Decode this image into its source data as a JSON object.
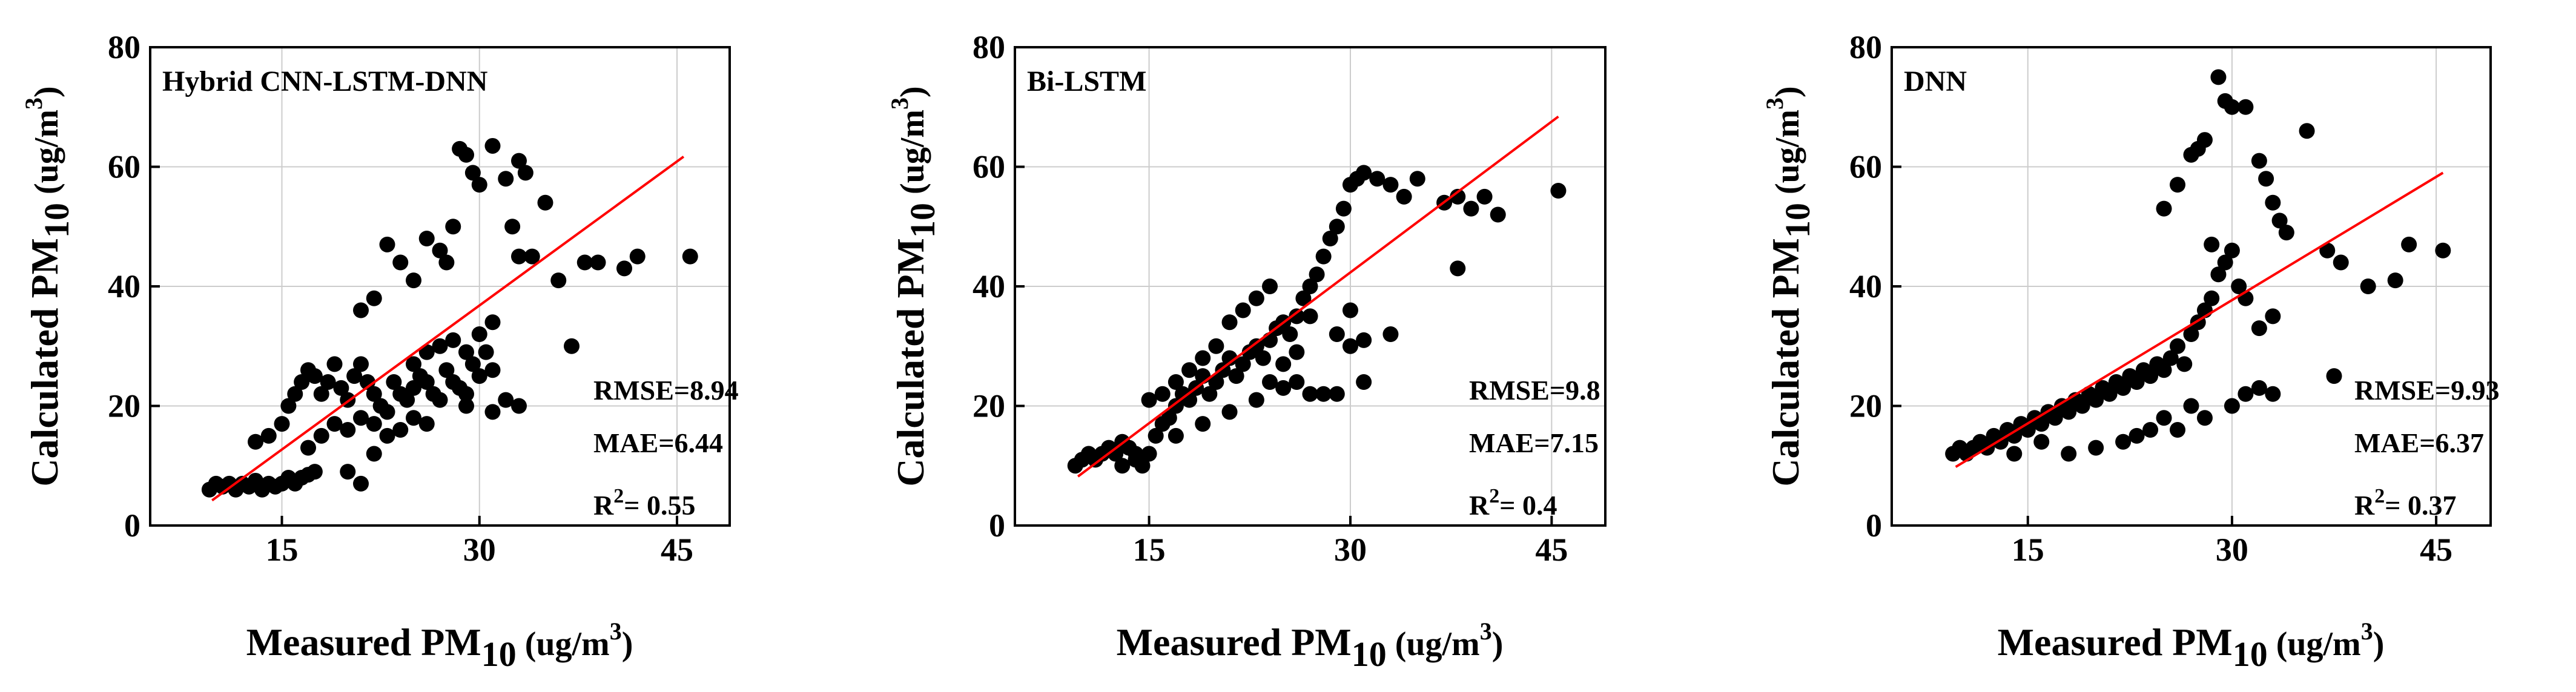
{
  "colors": {
    "point": "#000000",
    "fit_line": "#ff0000",
    "grid": "#cccccc",
    "axis": "#000000"
  },
  "chart_data": [
    {
      "type": "scatter",
      "title": "Hybrid CNN-LSTM-DNN",
      "xlabel": {
        "main": "Measured PM",
        "sub": "10",
        "unit_pre": " (ug/m",
        "sup": "3",
        "unit_post": ")"
      },
      "ylabel": {
        "main": "Calculated PM",
        "sub": "10",
        "unit_pre": " (ug/m",
        "sup": "3",
        "unit_post": ")"
      },
      "xlim": [
        5,
        49
      ],
      "ylim": [
        0,
        80
      ],
      "xticks": [
        15,
        30,
        45
      ],
      "yticks": [
        0,
        20,
        40,
        60,
        80
      ],
      "grid": true,
      "fit_line": {
        "x": [
          9.7,
          45.5
        ],
        "y": [
          4.2,
          61.7
        ]
      },
      "stats": {
        "rmse": "RMSE=8.94",
        "mae": "MAE=6.44",
        "r2_pre": "R",
        "r2_sup": "2",
        "r2_post": "= 0.55"
      },
      "points": [
        [
          9.5,
          6
        ],
        [
          10,
          7
        ],
        [
          10.5,
          6.5
        ],
        [
          11,
          7
        ],
        [
          11.5,
          6
        ],
        [
          12,
          7
        ],
        [
          12.5,
          6.5
        ],
        [
          13,
          7.5
        ],
        [
          13.5,
          6
        ],
        [
          14,
          7
        ],
        [
          14.5,
          6.5
        ],
        [
          15,
          7
        ],
        [
          15.5,
          8
        ],
        [
          16,
          7
        ],
        [
          16.5,
          8
        ],
        [
          17,
          8.5
        ],
        [
          17.5,
          9
        ],
        [
          13,
          14
        ],
        [
          14,
          15
        ],
        [
          15,
          17
        ],
        [
          15.5,
          20
        ],
        [
          16,
          22
        ],
        [
          16.5,
          24
        ],
        [
          17,
          26
        ],
        [
          17.5,
          25
        ],
        [
          18,
          22
        ],
        [
          18.5,
          24
        ],
        [
          19,
          27
        ],
        [
          19.5,
          23
        ],
        [
          20,
          21
        ],
        [
          20.5,
          25
        ],
        [
          21,
          27
        ],
        [
          21.5,
          24
        ],
        [
          22,
          22
        ],
        [
          22.5,
          20
        ],
        [
          23,
          19
        ],
        [
          23.5,
          24
        ],
        [
          24,
          22
        ],
        [
          24.5,
          21
        ],
        [
          25,
          23
        ],
        [
          25.5,
          25
        ],
        [
          26,
          24
        ],
        [
          26.5,
          22
        ],
        [
          27,
          21
        ],
        [
          27.5,
          26
        ],
        [
          28,
          24
        ],
        [
          28.5,
          23
        ],
        [
          29,
          22
        ],
        [
          29.5,
          27
        ],
        [
          30,
          25
        ],
        [
          30.5,
          29
        ],
        [
          31,
          26
        ],
        [
          17,
          13
        ],
        [
          18,
          15
        ],
        [
          19,
          17
        ],
        [
          20,
          16
        ],
        [
          21,
          18
        ],
        [
          22,
          17
        ],
        [
          23,
          15
        ],
        [
          24,
          16
        ],
        [
          25,
          18
        ],
        [
          26,
          17
        ],
        [
          20,
          9
        ],
        [
          21,
          7
        ],
        [
          22,
          12
        ],
        [
          21,
          36
        ],
        [
          22,
          38
        ],
        [
          23,
          47
        ],
        [
          24,
          44
        ],
        [
          25,
          41
        ],
        [
          26,
          48
        ],
        [
          27,
          46
        ],
        [
          27.5,
          44
        ],
        [
          28,
          50
        ],
        [
          28.5,
          63
        ],
        [
          29,
          62
        ],
        [
          29.5,
          59
        ],
        [
          30,
          57
        ],
        [
          31,
          63.5
        ],
        [
          32,
          58
        ],
        [
          33,
          61
        ],
        [
          33.5,
          59
        ],
        [
          32.5,
          50
        ],
        [
          33,
          45
        ],
        [
          34,
          45
        ],
        [
          35,
          54
        ],
        [
          36,
          41
        ],
        [
          37,
          30
        ],
        [
          38,
          44
        ],
        [
          39,
          44
        ],
        [
          41,
          43
        ],
        [
          42,
          45
        ],
        [
          46,
          45
        ],
        [
          29,
          20
        ],
        [
          31,
          19
        ],
        [
          32,
          21
        ],
        [
          33,
          20
        ],
        [
          28,
          31
        ],
        [
          29,
          29
        ],
        [
          30,
          32
        ],
        [
          31,
          34
        ],
        [
          25,
          27
        ],
        [
          26,
          29
        ],
        [
          27,
          30
        ]
      ]
    },
    {
      "type": "scatter",
      "title": "Bi-LSTM",
      "xlabel": {
        "main": "Measured PM",
        "sub": "10",
        "unit_pre": " (ug/m",
        "sup": "3",
        "unit_post": ")"
      },
      "ylabel": {
        "main": "Calculated PM",
        "sub": "10",
        "unit_pre": " (ug/m",
        "sup": "3",
        "unit_post": ")"
      },
      "xlim": [
        5,
        49
      ],
      "ylim": [
        0,
        80
      ],
      "xticks": [
        15,
        30,
        45
      ],
      "yticks": [
        0,
        20,
        40,
        60,
        80
      ],
      "grid": true,
      "fit_line": {
        "x": [
          9.7,
          45.5
        ],
        "y": [
          8.2,
          68.4
        ]
      },
      "stats": {
        "rmse": "RMSE=9.8",
        "mae": "MAE=7.15",
        "r2_pre": "R",
        "r2_sup": "2",
        "r2_post": "= 0.4"
      },
      "points": [
        [
          9.5,
          10
        ],
        [
          10,
          11
        ],
        [
          10.5,
          12
        ],
        [
          11,
          11
        ],
        [
          11.5,
          12
        ],
        [
          12,
          13
        ],
        [
          12.5,
          12
        ],
        [
          13,
          14
        ],
        [
          13.5,
          13
        ],
        [
          14,
          11
        ],
        [
          14.5,
          10
        ],
        [
          15,
          12
        ],
        [
          15.5,
          15
        ],
        [
          16,
          17
        ],
        [
          16.5,
          18
        ],
        [
          17,
          20
        ],
        [
          17.5,
          22
        ],
        [
          18,
          21
        ],
        [
          18.5,
          23
        ],
        [
          19,
          25
        ],
        [
          19.5,
          22
        ],
        [
          20,
          24
        ],
        [
          20.5,
          26
        ],
        [
          21,
          28
        ],
        [
          21.5,
          25
        ],
        [
          22,
          27
        ],
        [
          22.5,
          29
        ],
        [
          23,
          30
        ],
        [
          23.5,
          28
        ],
        [
          24,
          31
        ],
        [
          24.5,
          33
        ],
        [
          25,
          34
        ],
        [
          25.5,
          32
        ],
        [
          26,
          35
        ],
        [
          26.5,
          38
        ],
        [
          27,
          40
        ],
        [
          27.5,
          42
        ],
        [
          28,
          45
        ],
        [
          28.5,
          48
        ],
        [
          29,
          50
        ],
        [
          29.5,
          53
        ],
        [
          30,
          57
        ],
        [
          30.5,
          58
        ],
        [
          31,
          59
        ],
        [
          32,
          58
        ],
        [
          33,
          57
        ],
        [
          34,
          55
        ],
        [
          35,
          58
        ],
        [
          37,
          54
        ],
        [
          38,
          55
        ],
        [
          39,
          53
        ],
        [
          40,
          55
        ],
        [
          41,
          52
        ],
        [
          45.5,
          56
        ],
        [
          38,
          43
        ],
        [
          30,
          36
        ],
        [
          31,
          24
        ],
        [
          29,
          22
        ],
        [
          28,
          22
        ],
        [
          27,
          22
        ],
        [
          26,
          24
        ],
        [
          25,
          23
        ],
        [
          29,
          32
        ],
        [
          30,
          30
        ],
        [
          31,
          31
        ],
        [
          33,
          32
        ],
        [
          20,
          30
        ],
        [
          21,
          34
        ],
        [
          22,
          36
        ],
        [
          23,
          38
        ],
        [
          24,
          40
        ],
        [
          19,
          28
        ],
        [
          18,
          26
        ],
        [
          17,
          24
        ],
        [
          16,
          22
        ],
        [
          15,
          21
        ],
        [
          13,
          10
        ],
        [
          14,
          12
        ],
        [
          17,
          15
        ],
        [
          19,
          17
        ],
        [
          21,
          19
        ],
        [
          23,
          21
        ],
        [
          24,
          24
        ],
        [
          25,
          27
        ],
        [
          26,
          29
        ],
        [
          27,
          35
        ]
      ]
    },
    {
      "type": "scatter",
      "title": "DNN",
      "xlabel": {
        "main": "Measured PM",
        "sub": "10",
        "unit_pre": " (ug/m",
        "sup": "3",
        "unit_post": ")"
      },
      "ylabel": {
        "main": "Calculated PM",
        "sub": "10",
        "unit_pre": " (ug/m",
        "sup": "3",
        "unit_post": ")"
      },
      "xlim": [
        5,
        49
      ],
      "ylim": [
        0,
        80
      ],
      "xticks": [
        15,
        30,
        45
      ],
      "yticks": [
        0,
        20,
        40,
        60,
        80
      ],
      "grid": true,
      "fit_line": {
        "x": [
          9.7,
          45.5
        ],
        "y": [
          9.8,
          59.0
        ]
      },
      "stats": {
        "rmse": "RMSE=9.93",
        "mae": "MAE=6.37",
        "r2_pre": "R",
        "r2_sup": "2",
        "r2_post": "= 0.37"
      },
      "points": [
        [
          9.5,
          12
        ],
        [
          10,
          13
        ],
        [
          10.5,
          12
        ],
        [
          11,
          13
        ],
        [
          11.5,
          14
        ],
        [
          12,
          13
        ],
        [
          12.5,
          15
        ],
        [
          13,
          14
        ],
        [
          13.5,
          16
        ],
        [
          14,
          15
        ],
        [
          14.5,
          17
        ],
        [
          15,
          16
        ],
        [
          15.5,
          18
        ],
        [
          16,
          17
        ],
        [
          16.5,
          19
        ],
        [
          17,
          18
        ],
        [
          17.5,
          20
        ],
        [
          18,
          19
        ],
        [
          18.5,
          21
        ],
        [
          19,
          20
        ],
        [
          19.5,
          22
        ],
        [
          20,
          21
        ],
        [
          20.5,
          23
        ],
        [
          21,
          22
        ],
        [
          21.5,
          24
        ],
        [
          22,
          23
        ],
        [
          22.5,
          25
        ],
        [
          23,
          24
        ],
        [
          23.5,
          26
        ],
        [
          24,
          25
        ],
        [
          24.5,
          27
        ],
        [
          25,
          26
        ],
        [
          25.5,
          28
        ],
        [
          26,
          30
        ],
        [
          26.5,
          27
        ],
        [
          27,
          32
        ],
        [
          27.5,
          34
        ],
        [
          28,
          36
        ],
        [
          28.5,
          38
        ],
        [
          29,
          42
        ],
        [
          29.5,
          44
        ],
        [
          30,
          46
        ],
        [
          30.5,
          40
        ],
        [
          31,
          38
        ],
        [
          32,
          33
        ],
        [
          33,
          35
        ],
        [
          25,
          53
        ],
        [
          26,
          57
        ],
        [
          27,
          62
        ],
        [
          27.5,
          63
        ],
        [
          28,
          64.5
        ],
        [
          28.5,
          47
        ],
        [
          29,
          75
        ],
        [
          29.5,
          71
        ],
        [
          30,
          70
        ],
        [
          31,
          70
        ],
        [
          32,
          61
        ],
        [
          32.5,
          58
        ],
        [
          33,
          54
        ],
        [
          33.5,
          51
        ],
        [
          34,
          49
        ],
        [
          35.5,
          66
        ],
        [
          37,
          46
        ],
        [
          38,
          44
        ],
        [
          40,
          40
        ],
        [
          42,
          41
        ],
        [
          43,
          47
        ],
        [
          45.5,
          46
        ],
        [
          37.5,
          25
        ],
        [
          32,
          23
        ],
        [
          31,
          22
        ],
        [
          30,
          20
        ],
        [
          33,
          22
        ],
        [
          27,
          20
        ],
        [
          28,
          18
        ],
        [
          26,
          16
        ],
        [
          22,
          14
        ],
        [
          20,
          13
        ],
        [
          18,
          12
        ],
        [
          16,
          14
        ],
        [
          14,
          12
        ],
        [
          24,
          16
        ],
        [
          25,
          18
        ],
        [
          23,
          15
        ]
      ]
    }
  ]
}
